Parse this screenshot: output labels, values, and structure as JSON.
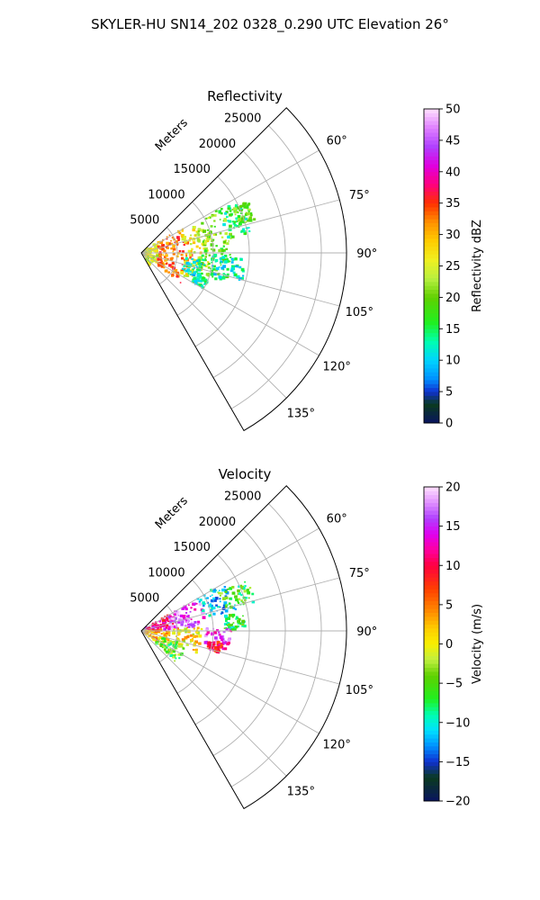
{
  "figure": {
    "title": "SKYLER-HU  SN14_202  0328_0.290 UTC Elevation 26°"
  },
  "chart_data": [
    {
      "type": "heatmap",
      "subtype": "polar-sector-ppi",
      "title": "Reflectivity",
      "range_axis_label": "Meters",
      "range_ticks": [
        5000,
        10000,
        15000,
        20000,
        25000
      ],
      "range_tick_labels": [
        "5000",
        "10000",
        "15000",
        "20000",
        "25000"
      ],
      "range_max": 28500,
      "azimuth_range": [
        45,
        150
      ],
      "azimuth_ticks": [
        60,
        75,
        90,
        105,
        120,
        135
      ],
      "azimuth_tick_labels": [
        "60°",
        "75°",
        "90°",
        "105°",
        "120°",
        "135°"
      ],
      "grid": true,
      "colorbar": {
        "label": "Reflectivity dBZ",
        "range": [
          0,
          50
        ],
        "ticks": [
          0,
          5,
          10,
          15,
          20,
          25,
          30,
          35,
          40,
          45,
          50
        ],
        "tick_labels": [
          "0",
          "5",
          "10",
          "15",
          "20",
          "25",
          "30",
          "35",
          "40",
          "45",
          "50"
        ],
        "placement": "right"
      },
      "echo_regions": [
        {
          "az": [
            56,
            148
          ],
          "r": [
            0,
            2500
          ],
          "value": 25
        },
        {
          "az": [
            58,
            128
          ],
          "r": [
            2500,
            7000
          ],
          "value": 33
        },
        {
          "az": [
            66,
            120
          ],
          "r": [
            6000,
            9500
          ],
          "value": 26
        },
        {
          "az": [
            60,
            84
          ],
          "r": [
            8000,
            13000
          ],
          "value": 21
        },
        {
          "az": [
            84,
            110
          ],
          "r": [
            8500,
            12500
          ],
          "value": 18
        },
        {
          "az": [
            62,
            80
          ],
          "r": [
            12000,
            15500
          ],
          "value": 15
        },
        {
          "az": [
            92,
            108
          ],
          "r": [
            10000,
            14500
          ],
          "value": 12
        },
        {
          "az": [
            64,
            74
          ],
          "r": [
            14000,
            16500
          ],
          "value": 19
        },
        {
          "az": [
            96,
            114
          ],
          "r": [
            6000,
            9000
          ],
          "value": 11
        },
        {
          "az": [
            112,
            120
          ],
          "r": [
            8000,
            10000
          ],
          "value": 13
        }
      ]
    },
    {
      "type": "heatmap",
      "subtype": "polar-sector-ppi",
      "title": "Velocity",
      "range_axis_label": "Meters",
      "range_ticks": [
        5000,
        10000,
        15000,
        20000,
        25000
      ],
      "range_tick_labels": [
        "5000",
        "10000",
        "15000",
        "20000",
        "25000"
      ],
      "range_max": 28500,
      "azimuth_range": [
        45,
        150
      ],
      "azimuth_ticks": [
        60,
        75,
        90,
        105,
        120,
        135
      ],
      "azimuth_tick_labels": [
        "60°",
        "75°",
        "90°",
        "105°",
        "120°",
        "135°"
      ],
      "grid": true,
      "colorbar": {
        "label": "Velocity (m/s)",
        "range": [
          -20,
          20
        ],
        "ticks": [
          -20,
          -15,
          -10,
          -5,
          0,
          5,
          10,
          15,
          20
        ],
        "tick_labels": [
          "−20",
          "−15",
          "−10",
          "−5",
          "0",
          "5",
          "10",
          "15",
          "20"
        ],
        "placement": "right"
      },
      "echo_regions": [
        {
          "az": [
            58,
            88
          ],
          "r": [
            0,
            4500
          ],
          "value": 12
        },
        {
          "az": [
            88,
            128
          ],
          "r": [
            0,
            4000
          ],
          "value": 3
        },
        {
          "az": [
            60,
            86
          ],
          "r": [
            4000,
            9000
          ],
          "value": 16
        },
        {
          "az": [
            86,
            112
          ],
          "r": [
            4500,
            8500
          ],
          "value": 1
        },
        {
          "az": [
            108,
            132
          ],
          "r": [
            2500,
            6500
          ],
          "value": -5
        },
        {
          "az": [
            60,
            78
          ],
          "r": [
            9000,
            13500
          ],
          "value": -11
        },
        {
          "az": [
            64,
            76
          ],
          "r": [
            12000,
            16500
          ],
          "value": -6
        },
        {
          "az": [
            88,
            104
          ],
          "r": [
            9000,
            12500
          ],
          "value": 15
        },
        {
          "az": [
            98,
            106
          ],
          "r": [
            9500,
            11500
          ],
          "value": 10
        },
        {
          "az": [
            80,
            90
          ],
          "r": [
            11500,
            14500
          ],
          "value": -7
        }
      ]
    }
  ]
}
